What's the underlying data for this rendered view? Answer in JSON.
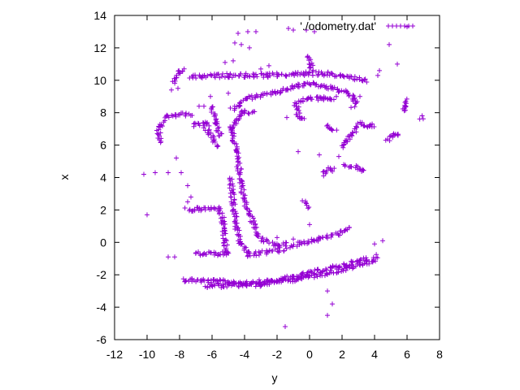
{
  "chart_data": {
    "type": "scatter",
    "title": "",
    "xlabel": "y",
    "ylabel": "x",
    "xlim": [
      -12,
      8
    ],
    "ylim": [
      -6,
      14
    ],
    "xticks": [
      -12,
      -10,
      -8,
      -6,
      -4,
      -2,
      0,
      2,
      4,
      6,
      8
    ],
    "yticks": [
      -6,
      -4,
      -2,
      0,
      2,
      4,
      6,
      8,
      10,
      12,
      14
    ],
    "grid": false,
    "legend": "top-right",
    "marker": "+",
    "series": [
      {
        "name": "'./odometry.dat'",
        "color": "#9400d3",
        "segments": [
          [
            [
              -7.8,
              -2.3
            ],
            [
              -4.0,
              -2.5
            ],
            [
              -1.0,
              -2.3
            ],
            [
              2.0,
              -1.7
            ],
            [
              4.0,
              -1.1
            ],
            [
              4.2,
              -0.8
            ]
          ],
          [
            [
              -6.5,
              -2.7
            ],
            [
              -3.0,
              -2.6
            ],
            [
              0.0,
              -1.9
            ],
            [
              2.5,
              -1.3
            ],
            [
              3.6,
              -1.0
            ]
          ],
          [
            [
              -1.2,
              -0.2
            ],
            [
              0.5,
              0.2
            ],
            [
              2.0,
              0.6
            ],
            [
              2.4,
              0.9
            ]
          ],
          [
            [
              -7.6,
              2.0
            ],
            [
              -5.5,
              2.1
            ],
            [
              -5.3,
              1.2
            ],
            [
              -5.2,
              0.1
            ],
            [
              -5.1,
              -0.7
            ]
          ],
          [
            [
              -7.0,
              -0.7
            ],
            [
              -5.0,
              -0.7
            ]
          ],
          [
            [
              -4.8,
              7.2
            ],
            [
              -4.5,
              5.5
            ],
            [
              -4.2,
              3.8
            ],
            [
              -4.0,
              2.5
            ],
            [
              -3.5,
              1.3
            ],
            [
              -3.0,
              0.2
            ],
            [
              -2.0,
              -0.2
            ],
            [
              -1.4,
              -0.1
            ]
          ],
          [
            [
              -4.9,
              4.0
            ],
            [
              -4.7,
              2.5
            ],
            [
              -4.5,
              1.0
            ],
            [
              -4.3,
              0.0
            ],
            [
              -3.7,
              -0.8
            ],
            [
              -2.6,
              -0.6
            ],
            [
              -1.5,
              -0.4
            ]
          ],
          [
            [
              -4.8,
              8.2
            ],
            [
              -3.8,
              8.9
            ],
            [
              -2.2,
              9.2
            ],
            [
              -1.0,
              9.6
            ],
            [
              0.0,
              9.8
            ],
            [
              1.5,
              9.5
            ],
            [
              2.5,
              9.1
            ],
            [
              2.9,
              8.7
            ],
            [
              2.6,
              8.4
            ]
          ],
          [
            [
              -7.3,
              10.2
            ],
            [
              -5.0,
              10.3
            ],
            [
              -2.5,
              10.3
            ],
            [
              -0.5,
              10.4
            ],
            [
              1.0,
              10.4
            ],
            [
              2.5,
              10.2
            ],
            [
              3.5,
              10.0
            ]
          ],
          [
            [
              -8.4,
              9.9
            ],
            [
              -8.0,
              10.5
            ],
            [
              -7.8,
              10.7
            ]
          ],
          [
            [
              -0.1,
              11.5
            ],
            [
              0.1,
              11.0
            ],
            [
              0.1,
              10.6
            ]
          ],
          [
            [
              -0.9,
              8.5
            ],
            [
              0.0,
              8.9
            ],
            [
              1.0,
              8.9
            ],
            [
              1.6,
              8.9
            ]
          ],
          [
            [
              -0.7,
              8.5
            ],
            [
              -0.7,
              7.8
            ],
            [
              -0.4,
              7.6
            ]
          ],
          [
            [
              1.0,
              7.2
            ],
            [
              1.6,
              6.9
            ]
          ],
          [
            [
              2.0,
              5.8
            ],
            [
              2.5,
              6.5
            ],
            [
              3.0,
              7.3
            ],
            [
              3.8,
              7.2
            ],
            [
              4.0,
              7.2
            ]
          ],
          [
            [
              4.8,
              6.3
            ],
            [
              5.3,
              6.7
            ],
            [
              5.5,
              6.7
            ]
          ],
          [
            [
              2.2,
              4.8
            ],
            [
              3.0,
              4.6
            ],
            [
              3.4,
              4.4
            ]
          ],
          [
            [
              0.8,
              4.2
            ],
            [
              1.2,
              4.5
            ],
            [
              1.5,
              4.5
            ]
          ],
          [
            [
              -0.4,
              2.5
            ],
            [
              0.0,
              2.2
            ]
          ],
          [
            [
              -9.2,
              6.2
            ],
            [
              -9.3,
              7.0
            ],
            [
              -9.0,
              7.5
            ]
          ],
          [
            [
              -8.9,
              7.8
            ],
            [
              -7.3,
              7.9
            ]
          ],
          [
            [
              -7.2,
              7.2
            ],
            [
              -6.3,
              7.3
            ]
          ],
          [
            [
              -6.0,
              8.4
            ],
            [
              -5.8,
              7.5
            ],
            [
              -5.5,
              6.5
            ]
          ],
          [
            [
              -6.5,
              7.3
            ],
            [
              -6.0,
              6.5
            ],
            [
              -5.7,
              5.9
            ]
          ],
          [
            [
              -4.8,
              6.9
            ],
            [
              -4.3,
              7.8
            ],
            [
              -4.1,
              8.1
            ],
            [
              -3.5,
              8.0
            ]
          ],
          [
            [
              5.8,
              8.0
            ],
            [
              5.8,
              8.5
            ],
            [
              5.9,
              8.8
            ]
          ],
          [
            [
              6.9,
              7.8
            ],
            [
              6.9,
              7.6
            ]
          ]
        ],
        "points": [
          [
            -1.3,
            13.2
          ],
          [
            -1.0,
            13.1
          ],
          [
            -0.2,
            13.1
          ],
          [
            0.3,
            13.0
          ],
          [
            -3.3,
            13.0
          ],
          [
            -3.8,
            13.0
          ],
          [
            -4.4,
            12.9
          ],
          [
            -4.6,
            12.3
          ],
          [
            -4.2,
            12.2
          ],
          [
            -3.7,
            12.0
          ],
          [
            -4.7,
            11.2
          ],
          [
            -5.2,
            11.1
          ],
          [
            6.0,
            13.3
          ],
          [
            4.9,
            12.2
          ],
          [
            5.4,
            11.0
          ],
          [
            4.3,
            10.6
          ],
          [
            4.2,
            10.3
          ],
          [
            -8.5,
            9.4
          ],
          [
            -8.1,
            9.5
          ],
          [
            -6.8,
            8.4
          ],
          [
            -6.5,
            8.4
          ],
          [
            -6.1,
            9.0
          ],
          [
            -1.4,
            7.7
          ],
          [
            -0.7,
            5.6
          ],
          [
            0.6,
            5.4
          ],
          [
            1.8,
            5.3
          ],
          [
            2.1,
            4.8
          ],
          [
            -10.2,
            4.2
          ],
          [
            -9.5,
            4.3
          ],
          [
            -8.7,
            4.3
          ],
          [
            -7.9,
            4.3
          ],
          [
            -8.2,
            5.2
          ],
          [
            -7.5,
            3.5
          ],
          [
            -7.5,
            2.5
          ],
          [
            -7.3,
            2.8
          ],
          [
            -10.0,
            1.7
          ],
          [
            -8.7,
            -0.9
          ],
          [
            -8.3,
            -0.9
          ],
          [
            0.0,
            1.1
          ],
          [
            -2.0,
            0.3
          ],
          [
            -1.0,
            0.2
          ],
          [
            -0.7,
            -2.3
          ],
          [
            1.1,
            -3.0
          ],
          [
            1.4,
            -3.8
          ],
          [
            1.1,
            -4.5
          ],
          [
            -1.5,
            -5.2
          ],
          [
            4.0,
            -0.1
          ],
          [
            4.5,
            0.1
          ],
          [
            -3.0,
            10.7
          ],
          [
            -2.5,
            10.9
          ],
          [
            -5.0,
            9.2
          ],
          [
            3.1,
            9.0
          ]
        ]
      }
    ]
  }
}
